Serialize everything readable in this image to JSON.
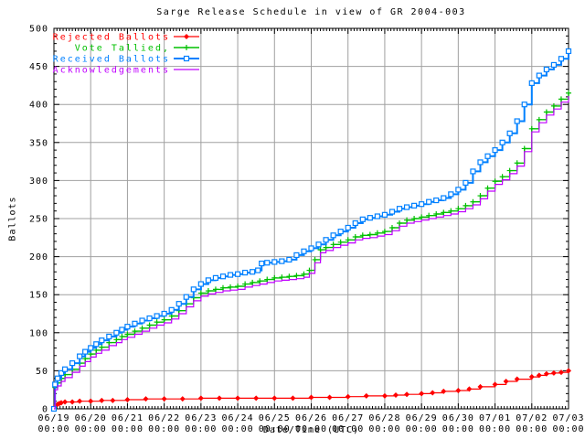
{
  "chart_data": {
    "type": "line",
    "title": "Sarge Release Schedule in view of GR 2004-003",
    "xlabel": "Date/Time (UTC)",
    "ylabel": "Ballots",
    "ylim": [
      0,
      500
    ],
    "yticks": [
      0,
      50,
      100,
      150,
      200,
      250,
      300,
      350,
      400,
      450,
      500
    ],
    "grid": true,
    "legend_position": "top-left",
    "colors": {
      "rejected": "#ff0000",
      "tallied": "#00c000",
      "received": "#0080ff",
      "acknowledgements": "#c000ff",
      "grid": "#a0a0a0",
      "axis": "#000000",
      "background": "#ffffff"
    },
    "xticks": [
      {
        "date": "06/19",
        "time": "00:00"
      },
      {
        "date": "06/20",
        "time": "00:00"
      },
      {
        "date": "06/21",
        "time": "00:00"
      },
      {
        "date": "06/22",
        "time": "00:00"
      },
      {
        "date": "06/23",
        "time": "00:00"
      },
      {
        "date": "06/24",
        "time": "00:00"
      },
      {
        "date": "06/25",
        "time": "00:00"
      },
      {
        "date": "06/26",
        "time": "00:00"
      },
      {
        "date": "06/27",
        "time": "00:00"
      },
      {
        "date": "06/28",
        "time": "00:00"
      },
      {
        "date": "06/29",
        "time": "00:00"
      },
      {
        "date": "06/30",
        "time": "00:00"
      },
      {
        "date": "07/01",
        "time": "00:00"
      },
      {
        "date": "07/02",
        "time": "00:00"
      },
      {
        "date": "07/03",
        "time": "00:00"
      }
    ],
    "series": [
      {
        "name": "Rejected Ballots",
        "key": "rejected",
        "marker": "diamond",
        "points": [
          [
            0,
            0
          ],
          [
            0.05,
            4
          ],
          [
            0.1,
            6
          ],
          [
            0.15,
            7
          ],
          [
            0.2,
            8
          ],
          [
            0.3,
            9
          ],
          [
            0.5,
            9
          ],
          [
            0.7,
            10
          ],
          [
            1,
            10
          ],
          [
            1.3,
            11
          ],
          [
            1.6,
            11
          ],
          [
            2,
            12
          ],
          [
            2.5,
            13
          ],
          [
            3,
            13
          ],
          [
            3.5,
            13
          ],
          [
            4,
            14
          ],
          [
            4.5,
            14
          ],
          [
            5,
            14
          ],
          [
            5.5,
            14
          ],
          [
            6,
            14
          ],
          [
            6.5,
            14
          ],
          [
            7,
            15
          ],
          [
            7.5,
            15
          ],
          [
            8,
            16
          ],
          [
            8.5,
            17
          ],
          [
            9,
            17
          ],
          [
            9.3,
            18
          ],
          [
            9.6,
            19
          ],
          [
            10,
            20
          ],
          [
            10.3,
            21
          ],
          [
            10.6,
            23
          ],
          [
            11,
            24
          ],
          [
            11.3,
            26
          ],
          [
            11.6,
            29
          ],
          [
            12,
            32
          ],
          [
            12.3,
            36
          ],
          [
            12.6,
            39
          ],
          [
            13,
            42
          ],
          [
            13.2,
            44
          ],
          [
            13.4,
            46
          ],
          [
            13.6,
            47
          ],
          [
            13.8,
            48
          ],
          [
            14,
            50
          ]
        ]
      },
      {
        "name": "Vote Tallied,",
        "key": "tallied",
        "marker": "plus",
        "points": [
          [
            0,
            0
          ],
          [
            0.03,
            28
          ],
          [
            0.1,
            34
          ],
          [
            0.2,
            40
          ],
          [
            0.3,
            45
          ],
          [
            0.5,
            52
          ],
          [
            0.7,
            60
          ],
          [
            0.85,
            66
          ],
          [
            1,
            72
          ],
          [
            1.15,
            77
          ],
          [
            1.3,
            81
          ],
          [
            1.5,
            87
          ],
          [
            1.7,
            91
          ],
          [
            1.85,
            95
          ],
          [
            2,
            98
          ],
          [
            2.2,
            102
          ],
          [
            2.4,
            106
          ],
          [
            2.6,
            110
          ],
          [
            2.8,
            114
          ],
          [
            3,
            117
          ],
          [
            3.2,
            122
          ],
          [
            3.4,
            129
          ],
          [
            3.6,
            138
          ],
          [
            3.8,
            146
          ],
          [
            4,
            152
          ],
          [
            4.2,
            155
          ],
          [
            4.4,
            157
          ],
          [
            4.6,
            159
          ],
          [
            4.8,
            160
          ],
          [
            5,
            161
          ],
          [
            5.2,
            164
          ],
          [
            5.4,
            166
          ],
          [
            5.6,
            168
          ],
          [
            5.8,
            170
          ],
          [
            6,
            172
          ],
          [
            6.2,
            173
          ],
          [
            6.4,
            174
          ],
          [
            6.6,
            175
          ],
          [
            6.8,
            177
          ],
          [
            6.95,
            182
          ],
          [
            7.1,
            196
          ],
          [
            7.25,
            209
          ],
          [
            7.4,
            212
          ],
          [
            7.6,
            216
          ],
          [
            7.8,
            219
          ],
          [
            8,
            222
          ],
          [
            8.2,
            226
          ],
          [
            8.4,
            228
          ],
          [
            8.6,
            229
          ],
          [
            8.8,
            231
          ],
          [
            9,
            233
          ],
          [
            9.2,
            238
          ],
          [
            9.4,
            244
          ],
          [
            9.6,
            248
          ],
          [
            9.8,
            250
          ],
          [
            10,
            252
          ],
          [
            10.2,
            254
          ],
          [
            10.4,
            256
          ],
          [
            10.6,
            258
          ],
          [
            10.8,
            260
          ],
          [
            11,
            263
          ],
          [
            11.2,
            267
          ],
          [
            11.4,
            272
          ],
          [
            11.6,
            280
          ],
          [
            11.8,
            290
          ],
          [
            12,
            299
          ],
          [
            12.2,
            305
          ],
          [
            12.4,
            313
          ],
          [
            12.6,
            323
          ],
          [
            12.8,
            342
          ],
          [
            13,
            368
          ],
          [
            13.2,
            380
          ],
          [
            13.4,
            390
          ],
          [
            13.6,
            398
          ],
          [
            13.8,
            407
          ],
          [
            14,
            415
          ]
        ]
      },
      {
        "name": "Received Ballots",
        "key": "received",
        "marker": "square",
        "points": [
          [
            0,
            0
          ],
          [
            0.03,
            32
          ],
          [
            0.1,
            40
          ],
          [
            0.2,
            47
          ],
          [
            0.3,
            52
          ],
          [
            0.5,
            60
          ],
          [
            0.7,
            69
          ],
          [
            0.85,
            75
          ],
          [
            1,
            80
          ],
          [
            1.15,
            85
          ],
          [
            1.3,
            90
          ],
          [
            1.5,
            95
          ],
          [
            1.7,
            100
          ],
          [
            1.85,
            104
          ],
          [
            2,
            108
          ],
          [
            2.2,
            112
          ],
          [
            2.4,
            116
          ],
          [
            2.6,
            119
          ],
          [
            2.8,
            122
          ],
          [
            3,
            125
          ],
          [
            3.2,
            130
          ],
          [
            3.4,
            138
          ],
          [
            3.6,
            147
          ],
          [
            3.8,
            157
          ],
          [
            4,
            164
          ],
          [
            4.2,
            169
          ],
          [
            4.4,
            172
          ],
          [
            4.6,
            174
          ],
          [
            4.8,
            176
          ],
          [
            5,
            177
          ],
          [
            5.2,
            179
          ],
          [
            5.4,
            180
          ],
          [
            5.55,
            182
          ],
          [
            5.65,
            191
          ],
          [
            5.8,
            192
          ],
          [
            6,
            193
          ],
          [
            6.2,
            194
          ],
          [
            6.4,
            196
          ],
          [
            6.6,
            202
          ],
          [
            6.8,
            207
          ],
          [
            7,
            211
          ],
          [
            7.2,
            216
          ],
          [
            7.4,
            222
          ],
          [
            7.6,
            228
          ],
          [
            7.8,
            233
          ],
          [
            8,
            238
          ],
          [
            8.2,
            244
          ],
          [
            8.4,
            249
          ],
          [
            8.6,
            251
          ],
          [
            8.8,
            253
          ],
          [
            9,
            255
          ],
          [
            9.2,
            259
          ],
          [
            9.4,
            263
          ],
          [
            9.6,
            265
          ],
          [
            9.8,
            267
          ],
          [
            10,
            269
          ],
          [
            10.2,
            272
          ],
          [
            10.4,
            274
          ],
          [
            10.6,
            277
          ],
          [
            10.8,
            282
          ],
          [
            11,
            288
          ],
          [
            11.2,
            297
          ],
          [
            11.4,
            312
          ],
          [
            11.6,
            324
          ],
          [
            11.8,
            332
          ],
          [
            12,
            340
          ],
          [
            12.2,
            350
          ],
          [
            12.4,
            362
          ],
          [
            12.6,
            378
          ],
          [
            12.8,
            400
          ],
          [
            13,
            428
          ],
          [
            13.2,
            438
          ],
          [
            13.4,
            446
          ],
          [
            13.6,
            452
          ],
          [
            13.8,
            460
          ],
          [
            14,
            470
          ]
        ]
      },
      {
        "name": "Acknowledgements",
        "key": "acknowledgements",
        "marker": "none",
        "points": [
          [
            0,
            0
          ],
          [
            0.03,
            25
          ],
          [
            0.1,
            30
          ],
          [
            0.2,
            36
          ],
          [
            0.3,
            41
          ],
          [
            0.5,
            48
          ],
          [
            0.7,
            56
          ],
          [
            0.85,
            62
          ],
          [
            1,
            68
          ],
          [
            1.15,
            73
          ],
          [
            1.3,
            77
          ],
          [
            1.5,
            83
          ],
          [
            1.7,
            87
          ],
          [
            1.85,
            91
          ],
          [
            2,
            94
          ],
          [
            2.2,
            98
          ],
          [
            2.4,
            102
          ],
          [
            2.6,
            106
          ],
          [
            2.8,
            110
          ],
          [
            3,
            113
          ],
          [
            3.2,
            118
          ],
          [
            3.4,
            125
          ],
          [
            3.6,
            134
          ],
          [
            3.8,
            142
          ],
          [
            4,
            148
          ],
          [
            4.2,
            151
          ],
          [
            4.4,
            153
          ],
          [
            4.6,
            155
          ],
          [
            4.8,
            156
          ],
          [
            5,
            157
          ],
          [
            5.2,
            160
          ],
          [
            5.4,
            162
          ],
          [
            5.6,
            164
          ],
          [
            5.8,
            166
          ],
          [
            6,
            168
          ],
          [
            6.2,
            169
          ],
          [
            6.4,
            170
          ],
          [
            6.6,
            171
          ],
          [
            6.8,
            173
          ],
          [
            6.95,
            178
          ],
          [
            7.1,
            192
          ],
          [
            7.25,
            205
          ],
          [
            7.4,
            208
          ],
          [
            7.6,
            212
          ],
          [
            7.8,
            215
          ],
          [
            8,
            218
          ],
          [
            8.2,
            222
          ],
          [
            8.4,
            224
          ],
          [
            8.6,
            225
          ],
          [
            8.8,
            227
          ],
          [
            9,
            229
          ],
          [
            9.2,
            234
          ],
          [
            9.4,
            240
          ],
          [
            9.6,
            244
          ],
          [
            9.8,
            246
          ],
          [
            10,
            248
          ],
          [
            10.2,
            250
          ],
          [
            10.4,
            252
          ],
          [
            10.6,
            254
          ],
          [
            10.8,
            256
          ],
          [
            11,
            259
          ],
          [
            11.2,
            263
          ],
          [
            11.4,
            268
          ],
          [
            11.6,
            276
          ],
          [
            11.8,
            286
          ],
          [
            12,
            295
          ],
          [
            12.2,
            301
          ],
          [
            12.4,
            309
          ],
          [
            12.6,
            319
          ],
          [
            12.8,
            338
          ],
          [
            13,
            364
          ],
          [
            13.2,
            376
          ],
          [
            13.4,
            386
          ],
          [
            13.6,
            394
          ],
          [
            13.8,
            403
          ],
          [
            14,
            411
          ]
        ]
      }
    ]
  }
}
